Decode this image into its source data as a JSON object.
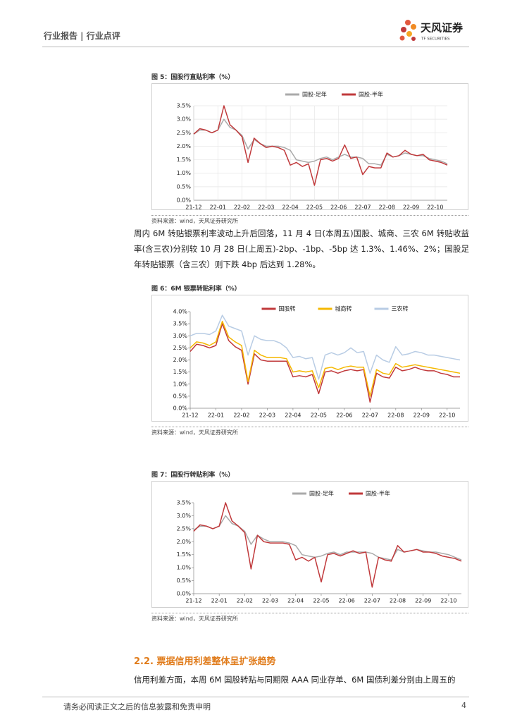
{
  "header": {
    "left": "行业报告 | 行业点评",
    "logo": "天风证券",
    "logo_sub": "TF SECURITIES"
  },
  "chart_data": [
    {
      "type": "line",
      "title": "图 5：国股行直贴利率（%）",
      "categories": [
        "21-12",
        null,
        null,
        null,
        "22-01",
        null,
        null,
        null,
        "22-02",
        null,
        null,
        null,
        "22-03",
        null,
        null,
        null,
        "22-04",
        null,
        null,
        null,
        "22-05",
        null,
        null,
        null,
        "22-06",
        null,
        null,
        null,
        "22-07",
        null,
        null,
        null,
        "22-08",
        null,
        null,
        null,
        "22-09",
        null,
        null,
        null,
        "22-10",
        null,
        null
      ],
      "series": [
        {
          "name": "国股-足年",
          "color": "#aaaaaa",
          "values": [
            2.45,
            2.6,
            2.6,
            2.5,
            2.6,
            3.0,
            2.7,
            2.6,
            2.4,
            1.9,
            2.25,
            2.1,
            2.0,
            2.0,
            2.0,
            1.95,
            1.85,
            1.5,
            1.45,
            1.4,
            1.45,
            1.55,
            1.6,
            1.5,
            1.6,
            1.7,
            1.6,
            1.6,
            1.55,
            1.35,
            1.35,
            1.3,
            1.7,
            1.6,
            1.65,
            1.75,
            1.7,
            1.65,
            1.65,
            1.55,
            1.5,
            1.45,
            1.35
          ]
        },
        {
          "name": "国股-半年",
          "color": "#c0393b",
          "values": [
            2.45,
            2.65,
            2.6,
            2.5,
            2.6,
            3.5,
            2.8,
            2.6,
            2.35,
            1.4,
            2.3,
            2.1,
            1.95,
            2.0,
            1.95,
            1.85,
            1.3,
            1.4,
            1.25,
            1.35,
            0.55,
            1.5,
            1.55,
            1.45,
            1.55,
            2.05,
            1.55,
            1.6,
            0.95,
            1.25,
            1.2,
            1.2,
            1.75,
            1.6,
            1.65,
            1.85,
            1.7,
            1.65,
            1.7,
            1.5,
            1.45,
            1.4,
            1.3
          ]
        }
      ],
      "ylim": [
        0,
        3.5
      ],
      "yticks": [
        {
          "value": 0,
          "label": "0.0%"
        },
        {
          "value": 0.5,
          "label": "0.5%"
        },
        {
          "value": 1,
          "label": "1.0%"
        },
        {
          "value": 1.5,
          "label": "1.5%"
        },
        {
          "value": 2,
          "label": "2.0%"
        },
        {
          "value": 2.5,
          "label": "2.5%"
        },
        {
          "value": 3,
          "label": "3.0%"
        },
        {
          "value": 3.5,
          "label": "3.5%"
        }
      ],
      "grid": true,
      "legend": "top",
      "source": "资料来源：wind，天风证券研究所"
    },
    {
      "type": "line",
      "title": "图 6：6M 银票转贴利率（%）",
      "categories": [
        "21-12",
        null,
        null,
        null,
        "22-01",
        null,
        null,
        null,
        "22-02",
        null,
        null,
        null,
        "22-03",
        null,
        null,
        null,
        "22-04",
        null,
        null,
        null,
        "22-05",
        null,
        null,
        null,
        "22-06",
        null,
        null,
        null,
        "22-07",
        null,
        null,
        null,
        "22-08",
        null,
        null,
        null,
        "22-09",
        null,
        null,
        null,
        "22-10",
        null,
        null
      ],
      "series": [
        {
          "name": "国股转",
          "color": "#c0393b",
          "values": [
            2.35,
            2.65,
            2.6,
            2.5,
            2.6,
            3.5,
            2.8,
            2.55,
            2.4,
            1.0,
            2.25,
            2.0,
            1.95,
            1.95,
            1.95,
            1.95,
            1.3,
            1.35,
            1.3,
            1.4,
            0.6,
            1.5,
            1.55,
            1.45,
            1.55,
            1.6,
            1.55,
            1.6,
            0.25,
            1.45,
            1.3,
            1.25,
            1.7,
            1.55,
            1.6,
            1.7,
            1.6,
            1.55,
            1.55,
            1.45,
            1.4,
            1.3,
            1.3
          ]
        },
        {
          "name": "城商转",
          "color": "#f5b800",
          "values": [
            2.5,
            2.75,
            2.7,
            2.6,
            2.75,
            3.6,
            2.95,
            2.75,
            2.6,
            1.1,
            2.4,
            2.2,
            2.1,
            2.1,
            2.1,
            2.05,
            1.5,
            1.55,
            1.5,
            1.55,
            0.85,
            1.65,
            1.7,
            1.6,
            1.7,
            1.75,
            1.7,
            1.7,
            0.5,
            1.6,
            1.45,
            1.4,
            1.85,
            1.7,
            1.75,
            1.8,
            1.75,
            1.7,
            1.65,
            1.6,
            1.55,
            1.5,
            1.45
          ]
        },
        {
          "name": "三农转",
          "color": "#b8cce4",
          "values": [
            3.0,
            3.1,
            3.1,
            3.05,
            3.2,
            3.85,
            3.4,
            3.3,
            3.2,
            2.2,
            3.0,
            2.85,
            2.8,
            2.8,
            2.7,
            2.5,
            2.1,
            2.15,
            2.05,
            2.1,
            1.2,
            2.2,
            2.3,
            2.2,
            2.3,
            2.5,
            2.3,
            2.35,
            1.45,
            2.2,
            2.0,
            1.9,
            2.55,
            2.2,
            2.25,
            2.35,
            2.3,
            2.2,
            2.2,
            2.15,
            2.1,
            2.05,
            2.0
          ]
        }
      ],
      "ylim": [
        0,
        4
      ],
      "yticks": [
        {
          "value": 0,
          "label": "0.0%"
        },
        {
          "value": 0.5,
          "label": "0.5%"
        },
        {
          "value": 1,
          "label": "1.0%"
        },
        {
          "value": 1.5,
          "label": "1.5%"
        },
        {
          "value": 2,
          "label": "2.0%"
        },
        {
          "value": 2.5,
          "label": "2.5%"
        },
        {
          "value": 3,
          "label": "3.0%"
        },
        {
          "value": 3.5,
          "label": "3.5%"
        },
        {
          "value": 4,
          "label": "4.0%"
        }
      ],
      "grid": false,
      "legend": "top",
      "source": "资料来源：wind，天风证券研究所"
    },
    {
      "type": "line",
      "title": "图 7：国股行转贴利率（%）",
      "categories": [
        "21-12",
        null,
        null,
        null,
        "22-01",
        null,
        null,
        null,
        "22-02",
        null,
        null,
        null,
        "22-03",
        null,
        null,
        null,
        "22-04",
        null,
        null,
        null,
        "22-05",
        null,
        null,
        null,
        "22-06",
        null,
        null,
        null,
        "22-07",
        null,
        null,
        null,
        "22-08",
        null,
        null,
        null,
        "22-09",
        null,
        null,
        null,
        "22-10",
        null,
        null
      ],
      "series": [
        {
          "name": "国股-足年",
          "color": "#aaaaaa",
          "values": [
            2.45,
            2.6,
            2.6,
            2.5,
            2.6,
            3.0,
            2.7,
            2.6,
            2.4,
            1.9,
            2.25,
            2.1,
            2.0,
            2.0,
            2.0,
            1.95,
            1.85,
            1.5,
            1.45,
            1.4,
            1.45,
            1.55,
            1.6,
            1.5,
            1.6,
            1.6,
            1.6,
            1.6,
            1.55,
            1.4,
            1.35,
            1.3,
            1.7,
            1.6,
            1.65,
            1.7,
            1.65,
            1.6,
            1.6,
            1.55,
            1.5,
            1.4,
            1.3
          ]
        },
        {
          "name": "国股-半年",
          "color": "#c0393b",
          "values": [
            2.4,
            2.65,
            2.6,
            2.5,
            2.6,
            3.5,
            2.8,
            2.6,
            2.35,
            0.95,
            2.25,
            2.0,
            1.95,
            1.95,
            1.95,
            1.9,
            1.3,
            1.4,
            1.25,
            1.4,
            0.45,
            1.5,
            1.55,
            1.45,
            1.55,
            1.65,
            1.55,
            1.6,
            0.25,
            1.4,
            1.3,
            1.25,
            1.85,
            1.6,
            1.65,
            1.7,
            1.6,
            1.6,
            1.55,
            1.45,
            1.4,
            1.35,
            1.25
          ]
        }
      ],
      "ylim": [
        0,
        3.5
      ],
      "yticks": [
        {
          "value": 0,
          "label": "0.0%"
        },
        {
          "value": 0.5,
          "label": "0.5%"
        },
        {
          "value": 1,
          "label": "1.0%"
        },
        {
          "value": 1.5,
          "label": "1.5%"
        },
        {
          "value": 2,
          "label": "2.0%"
        },
        {
          "value": 2.5,
          "label": "2.5%"
        },
        {
          "value": 3,
          "label": "3.0%"
        },
        {
          "value": 3.5,
          "label": "3.5%"
        }
      ],
      "grid": false,
      "legend": "top",
      "source": "资料来源：wind，天风证券研究所"
    }
  ],
  "body": {
    "paragraph1": "周内 6M 转贴银票利率波动上升后回落，11 月 4 日(本周五)国股、城商、三农 6M 转贴收益率(含三农)分别较 10 月 28 日(上周五)-2bp、-1bp、-5bp 达 1.3%、1.46%、2%；国股足年转贴银票（含三农）则下跌 4bp 后达到 1.28%。",
    "section": "2.2. 票据信用利差整体呈扩张趋势",
    "paragraph2": "信用利差方面，本周 6M 国股转贴与同期限 AAA 同业存单、6M 国债利差分别由上周五的"
  },
  "footer": {
    "disclaimer": "请务必阅读正文之后的信息披露和免责申明",
    "page": "4"
  }
}
